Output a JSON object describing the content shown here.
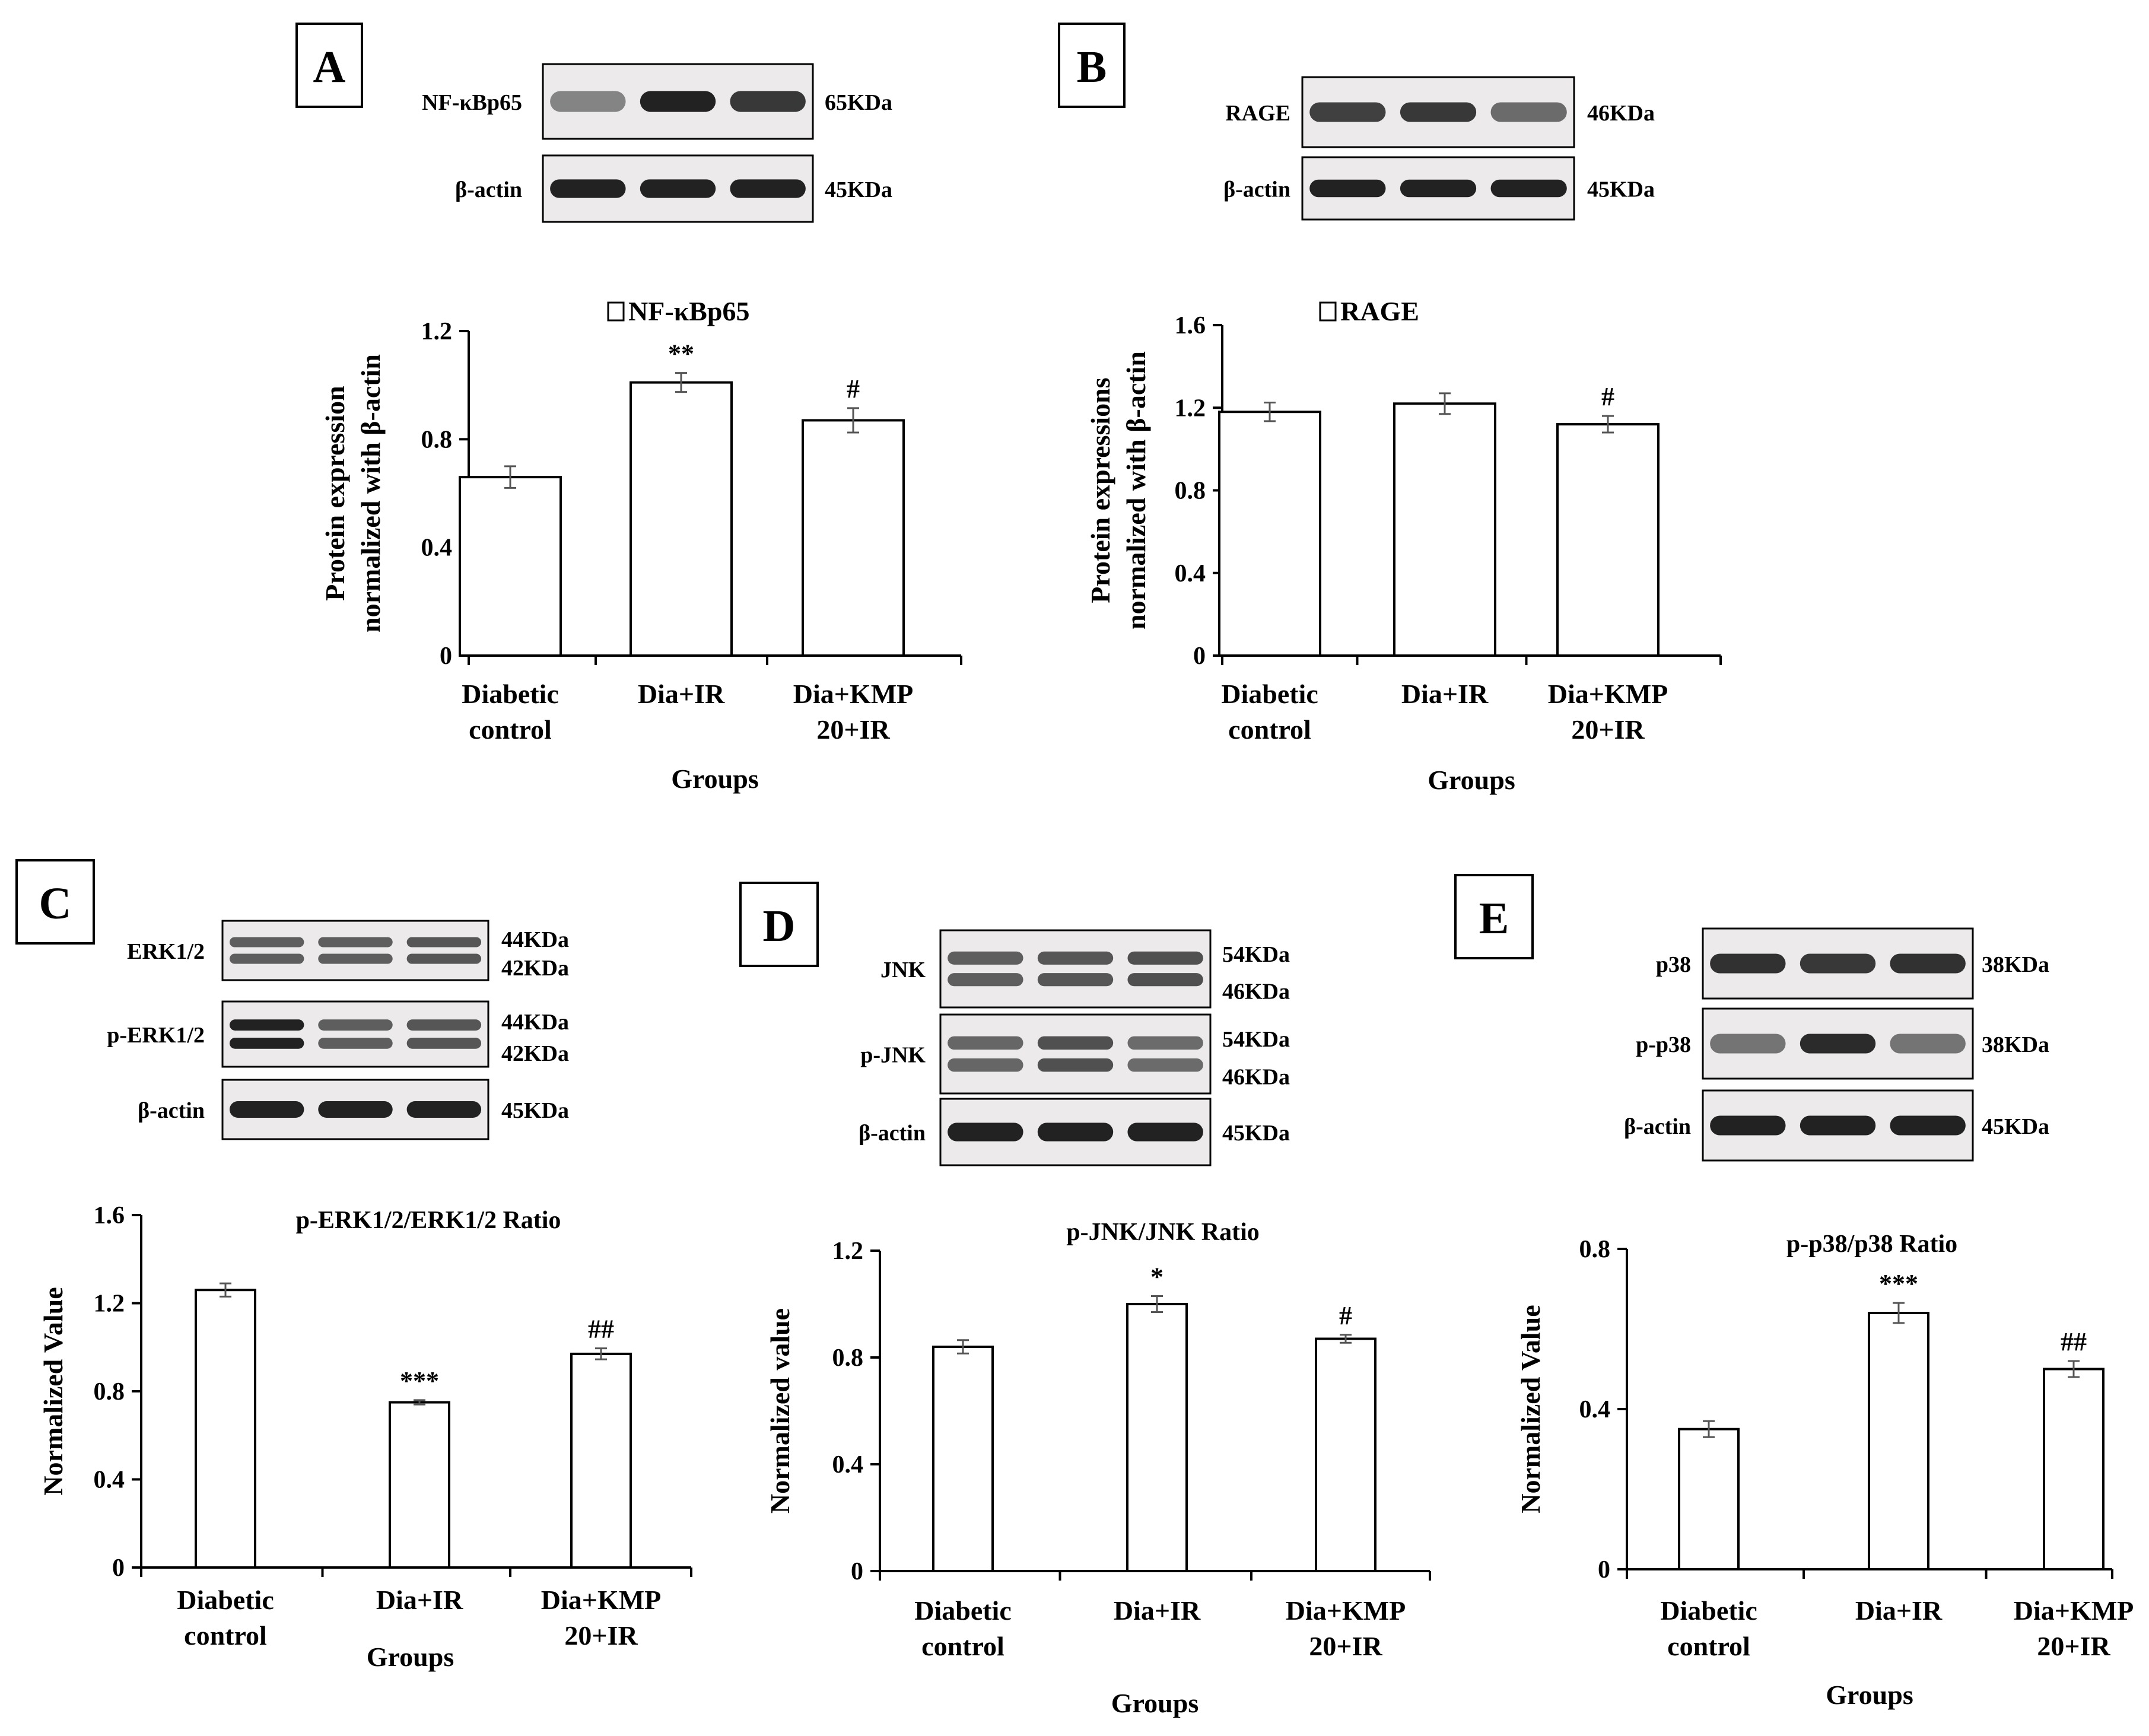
{
  "group_axis_title": "Groups",
  "chart_data": [
    {
      "panel": "A",
      "type": "bar",
      "title": "NF-κBp65",
      "legend_marker": true,
      "ylabel_lines": [
        "Protein expression",
        "normalized with β-actin"
      ],
      "categories": [
        [
          "Diabetic",
          "control"
        ],
        [
          "Dia+IR"
        ],
        [
          "Dia+KMP",
          "20+IR"
        ]
      ],
      "values": [
        0.66,
        1.01,
        0.87
      ],
      "errors": [
        0.04,
        0.035,
        0.045
      ],
      "significance": [
        "",
        "**",
        "#"
      ],
      "yticks": [
        0,
        0.4,
        0.8,
        1.2
      ],
      "ytick_labels": [
        "0",
        "0.4",
        "0.8",
        "1.2"
      ],
      "ylim": [
        0,
        1.2
      ],
      "xlabel": "Groups",
      "blots": [
        {
          "label": "NF-κBp65",
          "sizes": [
            "65KDa"
          ],
          "intensity": [
            0.35,
            1.0,
            0.85
          ]
        },
        {
          "label": "β-actin",
          "sizes": [
            "45KDa"
          ],
          "intensity": [
            1.0,
            1.0,
            1.0
          ]
        }
      ]
    },
    {
      "panel": "B",
      "type": "bar",
      "title": "RAGE",
      "legend_marker": true,
      "ylabel_lines": [
        "Protein expressions",
        "normalized with β-actin"
      ],
      "categories": [
        [
          "Diabetic",
          "control"
        ],
        [
          "Dia+IR"
        ],
        [
          "Dia+KMP",
          "20+IR"
        ]
      ],
      "values": [
        1.18,
        1.22,
        1.12
      ],
      "errors": [
        0.045,
        0.05,
        0.04
      ],
      "significance": [
        "",
        "",
        "#"
      ],
      "yticks": [
        0,
        0.4,
        0.8,
        1.2,
        1.6
      ],
      "ytick_labels": [
        "0",
        "0.4",
        "0.8",
        "1.2",
        "1.6"
      ],
      "ylim": [
        0,
        1.6
      ],
      "xlabel": "Groups",
      "blots": [
        {
          "label": "RAGE",
          "sizes": [
            "46KDa"
          ],
          "intensity": [
            0.8,
            0.85,
            0.5
          ]
        },
        {
          "label": "β-actin",
          "sizes": [
            "45KDa"
          ],
          "intensity": [
            1.0,
            1.0,
            1.0
          ]
        }
      ]
    },
    {
      "panel": "C",
      "type": "bar",
      "title": "p-ERK1/2/ERK1/2 Ratio",
      "legend_marker": false,
      "ylabel_lines": [
        "Normalized Value"
      ],
      "categories": [
        [
          "Diabetic",
          "control"
        ],
        [
          "Dia+IR"
        ],
        [
          "Dia+KMP",
          "20+IR"
        ]
      ],
      "values": [
        1.26,
        0.75,
        0.97
      ],
      "errors": [
        0.03,
        0.01,
        0.025
      ],
      "significance": [
        "",
        "***",
        "##"
      ],
      "yticks": [
        0,
        0.4,
        0.8,
        1.2,
        1.6
      ],
      "ytick_labels": [
        "0",
        "0.4",
        "0.8",
        "1.2",
        "1.6"
      ],
      "ylim": [
        0,
        1.6
      ],
      "xlabel": "Groups",
      "blots": [
        {
          "label": "ERK1/2",
          "sizes": [
            "44KDa",
            "42KDa"
          ],
          "intensity": [
            0.6,
            0.6,
            0.65
          ]
        },
        {
          "label": "p-ERK1/2",
          "sizes": [
            "44KDa",
            "42KDa"
          ],
          "intensity": [
            1.0,
            0.6,
            0.65
          ]
        },
        {
          "label": "β-actin",
          "sizes": [
            "45KDa"
          ],
          "intensity": [
            1.0,
            1.0,
            1.0
          ]
        }
      ]
    },
    {
      "panel": "D",
      "type": "bar",
      "title": "p-JNK/JNK Ratio",
      "legend_marker": false,
      "ylabel_lines": [
        "Normalized value"
      ],
      "categories": [
        [
          "Diabetic",
          "control"
        ],
        [
          "Dia+IR"
        ],
        [
          "Dia+KMP",
          "20+IR"
        ]
      ],
      "values": [
        0.84,
        1.0,
        0.87
      ],
      "errors": [
        0.025,
        0.03,
        0.015
      ],
      "significance": [
        "",
        "*",
        "#"
      ],
      "yticks": [
        0,
        0.4,
        0.8,
        1.2
      ],
      "ytick_labels": [
        "0",
        "0.4",
        "0.8",
        "1.2"
      ],
      "ylim": [
        0,
        1.2
      ],
      "xlabel": "Groups",
      "blots": [
        {
          "label": "JNK",
          "sizes": [
            "54KDa",
            "46KDa"
          ],
          "intensity": [
            0.6,
            0.65,
            0.7
          ]
        },
        {
          "label": "p-JNK",
          "sizes": [
            "54KDa",
            "46KDa"
          ],
          "intensity": [
            0.55,
            0.7,
            0.5
          ]
        },
        {
          "label": "β-actin",
          "sizes": [
            "45KDa"
          ],
          "intensity": [
            1.0,
            1.0,
            1.0
          ]
        }
      ]
    },
    {
      "panel": "E",
      "type": "bar",
      "title": "p-p38/p38 Ratio",
      "legend_marker": false,
      "ylabel_lines": [
        "Normalized Value"
      ],
      "categories": [
        [
          "Diabetic",
          "control"
        ],
        [
          "Dia+IR"
        ],
        [
          "Dia+KMP",
          "20+IR"
        ]
      ],
      "values": [
        0.35,
        0.64,
        0.5
      ],
      "errors": [
        0.02,
        0.025,
        0.02
      ],
      "significance": [
        "",
        "***",
        "##"
      ],
      "yticks": [
        0,
        0.4,
        0.8
      ],
      "ytick_labels": [
        "0",
        "0.4",
        "0.8"
      ],
      "ylim": [
        0,
        0.8
      ],
      "xlabel": "Groups",
      "blots": [
        {
          "label": "p38",
          "sizes": [
            "38KDa"
          ],
          "intensity": [
            0.9,
            0.85,
            0.9
          ]
        },
        {
          "label": "p-p38",
          "sizes": [
            "38KDa"
          ],
          "intensity": [
            0.45,
            0.95,
            0.45
          ]
        },
        {
          "label": "β-actin",
          "sizes": [
            "45KDa"
          ],
          "intensity": [
            1.0,
            1.0,
            1.0
          ]
        }
      ]
    }
  ]
}
